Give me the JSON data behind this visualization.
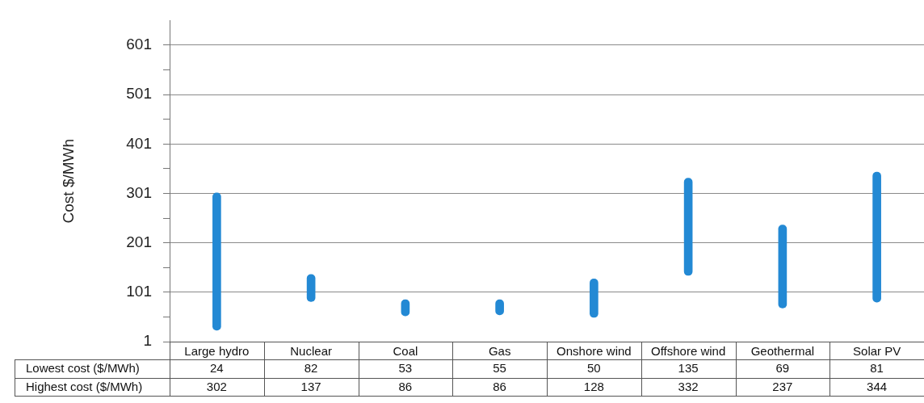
{
  "chart_data": {
    "type": "bar",
    "ylabel": "Cost $/MWh",
    "categories": [
      "Large hydro",
      "Nuclear",
      "Coal",
      "Gas",
      "Onshore wind",
      "Offshore wind",
      "Geothermal",
      "Solar PV"
    ],
    "base": [
      24,
      82,
      53,
      55,
      50,
      135,
      69,
      81
    ],
    "values": [
      278,
      55,
      33,
      31,
      78,
      197,
      168,
      263
    ],
    "color": "#2389d4",
    "ylim": [
      1,
      651
    ],
    "yticks": [
      1,
      {
        "value": 51,
        "label": null
      },
      101,
      {
        "value": 151,
        "label": null
      },
      201,
      {
        "value": 251,
        "label": null
      },
      301,
      {
        "value": 351,
        "label": null
      },
      401,
      {
        "value": 451,
        "label": null
      },
      501,
      {
        "value": 551,
        "label": null
      },
      601
    ],
    "grid": "y",
    "legend": false,
    "annotations": [
      "Lowest cost ($/MWh)",
      "Highest cost ($/MWh)",
      "24",
      "82",
      "53",
      "55",
      "50",
      "135",
      "69",
      "81",
      "302",
      "137",
      "86",
      "86",
      "128",
      "332",
      "237",
      "344"
    ]
  }
}
